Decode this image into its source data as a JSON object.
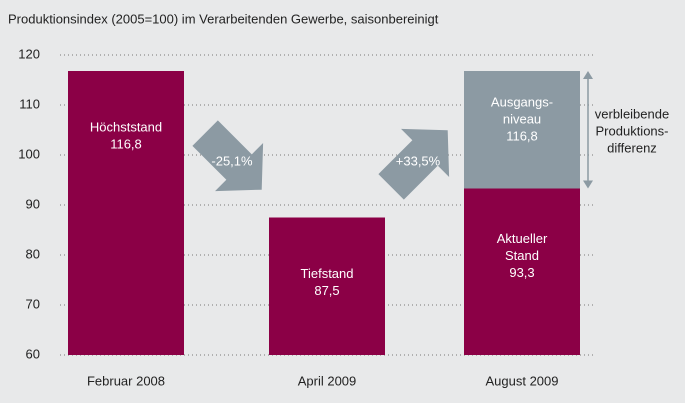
{
  "chart_data": {
    "type": "bar",
    "title": "Produktionsindex (2005=100) im Verarbeitenden Gewerbe, saisonbereinigt",
    "categories": [
      "Februar 2008",
      "April 2009",
      "August 2009"
    ],
    "values": [
      116.8,
      87.5,
      93.3
    ],
    "value_labels": [
      "116,8",
      "87,5",
      "93,3"
    ],
    "bar_labels": [
      [
        "Höchststand"
      ],
      [
        "Tiefstand"
      ],
      [
        "Aktueller",
        "Stand"
      ]
    ],
    "color": "#8b0046",
    "reference": {
      "lines": [
        "Ausgangs-",
        "niveau"
      ],
      "value": 116.8,
      "value_label": "116,8",
      "color": "#8c9aa3"
    },
    "changes": [
      {
        "value": -25.1,
        "label": "-25,1%"
      },
      {
        "value": 33.5,
        "label": "+33,5%"
      }
    ],
    "annotation": [
      "verbleibende",
      "Produktions-",
      "differenz"
    ],
    "ylim": [
      60,
      120
    ],
    "yticks": [
      60,
      70,
      80,
      90,
      100,
      110,
      120
    ],
    "grid": true
  }
}
